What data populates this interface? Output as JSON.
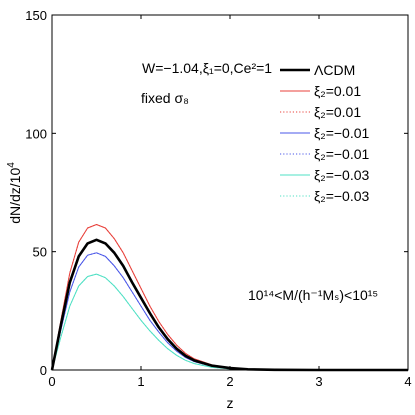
{
  "chart_data": {
    "type": "line",
    "xlabel": "z",
    "ylabel": "dN/dz/10",
    "ylabel_exponent": "4",
    "xlim": [
      0,
      4
    ],
    "ylim": [
      0,
      150
    ],
    "xticks": [
      "0",
      "1",
      "2",
      "3",
      "4"
    ],
    "yticks": [
      "0",
      "50",
      "100",
      "150"
    ],
    "grid": false,
    "legend_position": "top-right",
    "annotations": {
      "model": "W=−1.04,ξ₁=0,Ce²=1",
      "sigma": "fixed σ₈",
      "mass_range": "10¹⁴<M/(h⁻¹Mₛ)<10¹⁵"
    },
    "series": [
      {
        "name": "ΛCDM",
        "color": "#000000",
        "style": "solid",
        "width": 2.6,
        "x": [
          0,
          0.1,
          0.2,
          0.3,
          0.4,
          0.5,
          0.6,
          0.7,
          0.8,
          0.9,
          1.0,
          1.1,
          1.2,
          1.3,
          1.4,
          1.5,
          1.6,
          1.8,
          2.0,
          2.2,
          2.5,
          3.0,
          3.5,
          4.0
        ],
        "y": [
          0,
          19,
          37,
          48,
          53.5,
          55,
          53.5,
          49.5,
          44,
          37,
          30.5,
          24,
          18,
          13,
          9,
          6,
          4,
          1.8,
          0.8,
          0.3,
          0.1,
          0,
          0,
          0
        ]
      },
      {
        "name": "ξ₂=0.01",
        "color": "#e8413b",
        "style": "solid",
        "width": 1,
        "x": [
          0,
          0.1,
          0.2,
          0.3,
          0.4,
          0.5,
          0.6,
          0.7,
          0.8,
          0.9,
          1.0,
          1.1,
          1.2,
          1.3,
          1.4,
          1.5,
          1.6,
          1.8,
          2.0,
          2.2,
          2.5,
          3.0,
          3.5,
          4.0
        ],
        "y": [
          0,
          21,
          41,
          54,
          60,
          61.5,
          60,
          55.5,
          49.5,
          42,
          34.5,
          27,
          20.5,
          15,
          10.5,
          7,
          4.7,
          2.1,
          0.9,
          0.35,
          0.1,
          0,
          0,
          0
        ]
      },
      {
        "name": "ξ₂=0.01",
        "color": "#e8413b",
        "style": "dotted",
        "width": 1,
        "x": [
          0,
          0.1,
          0.2,
          0.3,
          0.4,
          0.5,
          0.6,
          0.7,
          0.8,
          0.9,
          1.0,
          1.1,
          1.2,
          1.3,
          1.4,
          1.5,
          1.6,
          1.8,
          2.0,
          2.2,
          2.5,
          3.0,
          3.5,
          4.0
        ],
        "y": [
          0,
          21,
          41,
          54,
          60,
          61.5,
          60,
          55.5,
          49.5,
          42,
          34.5,
          27,
          20.5,
          15,
          10.5,
          7,
          4.7,
          2.1,
          0.9,
          0.35,
          0.1,
          0,
          0,
          0
        ]
      },
      {
        "name": "ξ₂=−0.01",
        "color": "#4a57e8",
        "style": "solid",
        "width": 1,
        "x": [
          0,
          0.1,
          0.2,
          0.3,
          0.4,
          0.5,
          0.6,
          0.7,
          0.8,
          0.9,
          1.0,
          1.1,
          1.2,
          1.3,
          1.4,
          1.5,
          1.6,
          1.8,
          2.0,
          2.2,
          2.5,
          3.0,
          3.5,
          4.0
        ],
        "y": [
          0,
          17,
          33,
          43.5,
          48.5,
          49.5,
          48,
          44,
          39,
          33,
          27,
          21,
          16,
          11.5,
          8,
          5.3,
          3.5,
          1.5,
          0.6,
          0.25,
          0.08,
          0,
          0,
          0
        ]
      },
      {
        "name": "ξ₂=−0.01",
        "color": "#4a57e8",
        "style": "dotted",
        "width": 1,
        "x": [
          0,
          0.1,
          0.2,
          0.3,
          0.4,
          0.5,
          0.6,
          0.7,
          0.8,
          0.9,
          1.0,
          1.1,
          1.2,
          1.3,
          1.4,
          1.5,
          1.6,
          1.8,
          2.0,
          2.2,
          2.5,
          3.0,
          3.5,
          4.0
        ],
        "y": [
          0,
          17,
          33,
          43.5,
          48.5,
          49.5,
          48,
          44,
          39,
          33,
          27,
          21,
          16,
          11.5,
          8,
          5.3,
          3.5,
          1.5,
          0.6,
          0.25,
          0.08,
          0,
          0,
          0
        ]
      },
      {
        "name": "ξ₂=−0.03",
        "color": "#4fe0c4",
        "style": "solid",
        "width": 1,
        "x": [
          0,
          0.1,
          0.2,
          0.3,
          0.4,
          0.5,
          0.6,
          0.7,
          0.8,
          0.9,
          1.0,
          1.1,
          1.2,
          1.3,
          1.4,
          1.5,
          1.6,
          1.8,
          2.0,
          2.2,
          2.5,
          3.0,
          3.5,
          4.0
        ],
        "y": [
          0,
          14,
          27,
          35.5,
          39.5,
          40.5,
          39,
          35.5,
          31,
          26,
          21,
          16.5,
          12.5,
          9,
          6.2,
          4.1,
          2.7,
          1.1,
          0.45,
          0.18,
          0.05,
          0,
          0,
          0
        ]
      },
      {
        "name": "ξ₂=−0.03",
        "color": "#4fe0c4",
        "style": "dotted",
        "width": 1,
        "x": [
          0,
          0.1,
          0.2,
          0.3,
          0.4,
          0.5,
          0.6,
          0.7,
          0.8,
          0.9,
          1.0,
          1.1,
          1.2,
          1.3,
          1.4,
          1.5,
          1.6,
          1.8,
          2.0,
          2.2,
          2.5,
          3.0,
          3.5,
          4.0
        ],
        "y": [
          0,
          14,
          27,
          35.5,
          39.5,
          40.5,
          39,
          35.5,
          31,
          26,
          21,
          16.5,
          12.5,
          9,
          6.2,
          4.1,
          2.7,
          1.1,
          0.45,
          0.18,
          0.05,
          0,
          0,
          0
        ]
      }
    ]
  }
}
